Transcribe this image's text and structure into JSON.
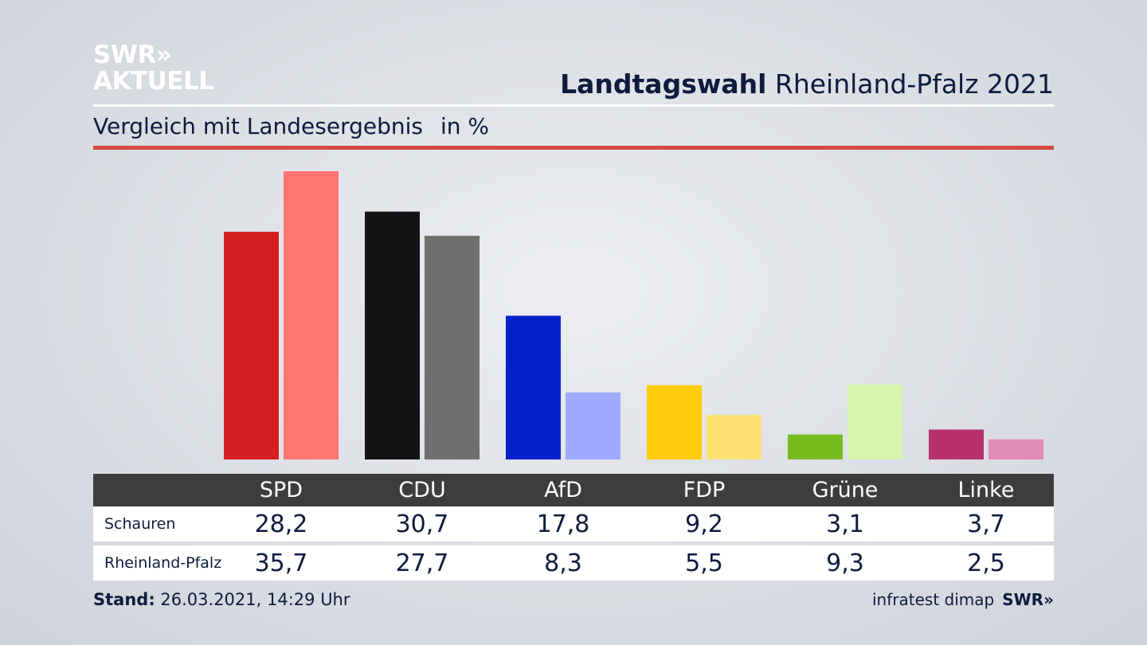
{
  "logo": {
    "line1": "SWR",
    "arrows": "»",
    "line2": "AKTUELL"
  },
  "header": {
    "title_bold": "Landtagswahl",
    "title_rest": "Rheinland-Pfalz 2021"
  },
  "subheader": {
    "text": "Vergleich mit Landesergebnis",
    "unit": "in %"
  },
  "footer": {
    "stand_label": "Stand:",
    "stand_value": "26.03.2021, 14:29 Uhr",
    "source": "infratest dimap",
    "brand": "SWR",
    "brand_arrows": "»"
  },
  "chart_data": {
    "type": "bar",
    "categories": [
      "SPD",
      "CDU",
      "AfD",
      "FDP",
      "Grüne",
      "Linke"
    ],
    "series": [
      {
        "name": "Schauren",
        "values": [
          28.2,
          30.7,
          17.8,
          9.2,
          3.1,
          3.7
        ],
        "labels": [
          "28,2",
          "30,7",
          "17,8",
          "9,2",
          "3,1",
          "3,7"
        ],
        "colors": [
          "#d42020",
          "#141414",
          "#0022c8",
          "#ffcc0a",
          "#76bc1f",
          "#b8306f"
        ]
      },
      {
        "name": "Rheinland-Pfalz",
        "values": [
          35.7,
          27.7,
          8.3,
          5.5,
          9.3,
          2.5
        ],
        "labels": [
          "35,7",
          "27,7",
          "8,3",
          "5,5",
          "9,3",
          "2,5"
        ],
        "colors": [
          "#ff7570",
          "#706f6e",
          "#9daafe",
          "#fde171",
          "#d6f5ad",
          "#e08bb9"
        ]
      }
    ],
    "ylim": [
      0,
      36
    ]
  }
}
